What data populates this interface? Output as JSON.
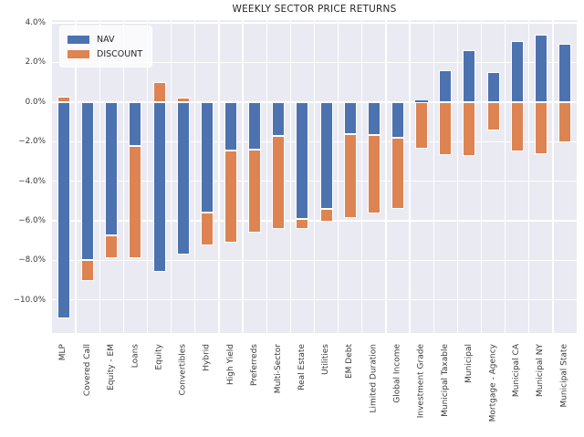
{
  "chart_data": {
    "type": "bar",
    "stacked": true,
    "title": "WEEKLY SECTOR PRICE RETURNS",
    "xlabel": "",
    "ylabel": "",
    "categories": [
      "MLP",
      "Covered Call",
      "Equity - EM",
      "Loans",
      "Equity",
      "Convertibles",
      "Hybrid",
      "High Yield",
      "Preferreds",
      "Multi-Sector",
      "Real Estate",
      "Utilities",
      "EM Debt",
      "Limited Duration",
      "Global Income",
      "Investment Grade",
      "Municipal Taxable",
      "Municipal",
      "Mortgage - Agency",
      "Municipal CA",
      "Municipal NY",
      "Municipal State"
    ],
    "series": [
      {
        "name": "NAV",
        "color": "#4c72b0",
        "values": [
          -10.95,
          -8.0,
          -6.75,
          -2.2,
          -8.6,
          -7.7,
          -5.6,
          -2.45,
          -2.4,
          -1.7,
          -5.9,
          -5.4,
          -1.6,
          -1.65,
          -1.8,
          0.1,
          1.6,
          2.6,
          1.5,
          3.1,
          3.4,
          2.95
        ]
      },
      {
        "name": "DISCOUNT",
        "color": "#dd8452",
        "values": [
          0.25,
          -1.05,
          -1.15,
          -5.7,
          1.0,
          0.2,
          -1.65,
          -4.65,
          -4.2,
          -4.7,
          -0.5,
          -0.65,
          -4.25,
          -4.0,
          -3.6,
          -2.35,
          -2.7,
          -2.75,
          -1.45,
          -2.5,
          -2.65,
          -2.05
        ]
      }
    ],
    "y_tick_values": [
      4,
      2,
      0,
      -2,
      -4,
      -6,
      -8,
      -10
    ],
    "y_tick_labels": [
      "4.0%",
      "2.0%",
      "0.0%",
      "−2.0%",
      "−4.0%",
      "−6.0%",
      "−8.0%",
      "−10.0%"
    ],
    "ylim": [
      -11.67,
      4.14
    ],
    "grid": true,
    "legend_position": "upper left",
    "plot_bg_color": "#eaeaf2",
    "grid_color": "#ffffff"
  }
}
